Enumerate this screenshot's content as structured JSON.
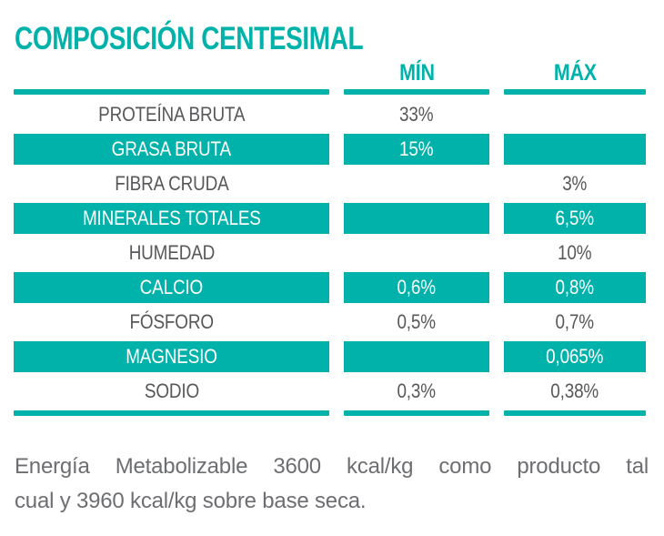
{
  "title": "COMPOSICIÓN CENTESIMAL",
  "colors": {
    "accent_teal": "#00b2a9",
    "text_gray": "#58585b",
    "footer_gray": "#6d6e71"
  },
  "table": {
    "columns": {
      "min_label": "MÍN",
      "max_label": "MÁX"
    },
    "rows": [
      {
        "label": "PROTEÍNA BRUTA",
        "min": "33%",
        "max": "",
        "highlight": false
      },
      {
        "label": "GRASA BRUTA",
        "min": "15%",
        "max": "",
        "highlight": true
      },
      {
        "label": "FIBRA CRUDA",
        "min": "",
        "max": "3%",
        "highlight": false
      },
      {
        "label": "MINERALES TOTALES",
        "min": "",
        "max": "6,5%",
        "highlight": true
      },
      {
        "label": "HUMEDAD",
        "min": "",
        "max": "10%",
        "highlight": false
      },
      {
        "label": "CALCIO",
        "min": "0,6%",
        "max": "0,8%",
        "highlight": true
      },
      {
        "label": "FÓSFORO",
        "min": "0,5%",
        "max": "0,7%",
        "highlight": false
      },
      {
        "label": "MAGNESIO",
        "min": "",
        "max": "0,065%",
        "highlight": true
      },
      {
        "label": "SODIO",
        "min": "0,3%",
        "max": "0,38%",
        "highlight": false
      }
    ]
  },
  "footer": {
    "line1": "Energía Metabolizable 3600 kcal/kg como producto tal",
    "line2": "cual y 3960 kcal/kg sobre base seca."
  }
}
